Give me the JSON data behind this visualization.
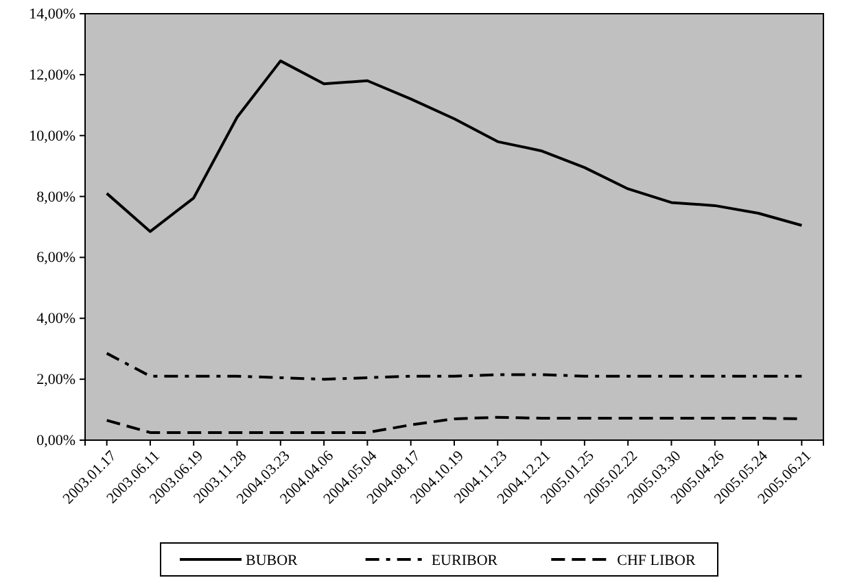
{
  "chart_data": {
    "type": "line",
    "categories": [
      "2003.01.17",
      "2003.06.11",
      "2003.06.19",
      "2003.11.28",
      "2004.03.23",
      "2004.04.06",
      "2004.05.04",
      "2004.08.17",
      "2004.10.19",
      "2004.11.23",
      "2004.12.21",
      "2005.01.25",
      "2005.02.22",
      "2005.03.30",
      "2005.04.26",
      "2005.05.24",
      "2005.06.21"
    ],
    "series": [
      {
        "name": "BUBOR",
        "color": "#000000",
        "line_style": "solid",
        "values": [
          8.1,
          6.85,
          7.95,
          10.6,
          12.45,
          11.7,
          11.8,
          11.2,
          10.55,
          9.8,
          9.5,
          8.95,
          8.25,
          7.8,
          7.7,
          7.45,
          7.05
        ]
      },
      {
        "name": "EURIBOR",
        "color": "#000000",
        "line_style": "dashdot",
        "values": [
          2.85,
          2.1,
          2.1,
          2.1,
          2.05,
          2.0,
          2.05,
          2.1,
          2.1,
          2.15,
          2.15,
          2.1,
          2.1,
          2.1,
          2.1,
          2.1,
          2.1
        ]
      },
      {
        "name": "CHF LIBOR",
        "color": "#000000",
        "line_style": "dashed",
        "values": [
          0.65,
          0.25,
          0.25,
          0.25,
          0.25,
          0.25,
          0.25,
          0.5,
          0.7,
          0.75,
          0.72,
          0.72,
          0.72,
          0.72,
          0.72,
          0.72,
          0.7
        ]
      }
    ],
    "ylim": [
      0,
      14
    ],
    "yticks": [
      {
        "value": 0,
        "label": "0,00%"
      },
      {
        "value": 2,
        "label": "2,00%"
      },
      {
        "value": 4,
        "label": "4,00%"
      },
      {
        "value": 6,
        "label": "6,00%"
      },
      {
        "value": 8,
        "label": "8,00%"
      },
      {
        "value": 10,
        "label": "10,00%"
      },
      {
        "value": 12,
        "label": "12,00%"
      },
      {
        "value": 14,
        "label": "14,00%"
      }
    ],
    "grid": false,
    "legend": "bottom",
    "marker": "none"
  }
}
